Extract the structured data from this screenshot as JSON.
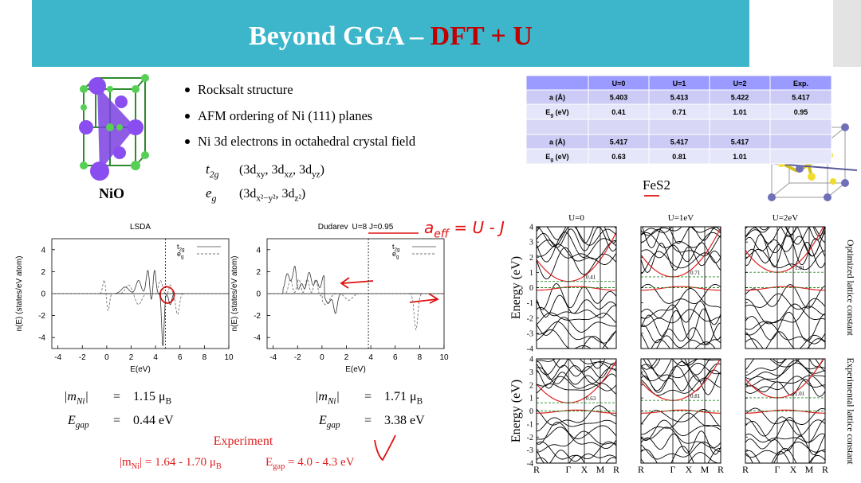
{
  "header": {
    "title_a": "Beyond GGA – ",
    "title_b": "DFT + U"
  },
  "structure": {
    "label": "NiO"
  },
  "bullets": [
    "Rocksalt structure",
    "AFM ordering of Ni (111) planes",
    "Ni 3d electrons in octahedral crystal field"
  ],
  "orbitals": [
    {
      "symbol": [
        "t",
        "2g"
      ],
      "set": [
        "(3d",
        "xy",
        ", 3d",
        "xz",
        ", 3d",
        "yz",
        ")"
      ]
    },
    {
      "symbol": [
        "e",
        "g"
      ],
      "set": [
        "(3d",
        "x²−y²",
        ", 3d",
        "z²",
        ")"
      ]
    }
  ],
  "table": {
    "header": [
      "U=0",
      "U=1",
      "U=2",
      "Exp."
    ],
    "rows": [
      {
        "label": [
          "a (Å)"
        ],
        "cells": [
          5.403,
          5.413,
          5.422,
          5.417
        ]
      },
      {
        "label": [
          "E",
          "g",
          " (eV)"
        ],
        "cells": [
          0.41,
          0.71,
          1.01,
          0.95
        ]
      },
      {
        "label": [
          "a (Å)"
        ],
        "cells": [
          5.417,
          5.417,
          5.417
        ]
      },
      {
        "label": [
          "E",
          "g",
          " (eV)"
        ],
        "cells": [
          0.63,
          0.81,
          1.01
        ]
      }
    ]
  },
  "compound": {
    "label": "FeS2"
  },
  "dos_axes": {
    "ylabel": "n(E) (states/eV atom)",
    "xlabel": "E(eV)",
    "xlim": [
      -4.5,
      10
    ],
    "ylim": [
      -5,
      5
    ],
    "xticks": [
      -4,
      -2,
      0,
      2,
      4,
      6,
      8,
      10
    ],
    "yticks": [
      -4,
      -2,
      0,
      2,
      4
    ],
    "legend": [
      [
        "t",
        "2g"
      ],
      [
        "e",
        "g"
      ]
    ]
  },
  "dos_panels": [
    {
      "title": "LSDA"
    },
    {
      "title": "Dudarev",
      "params": "U=8 J=0.95"
    }
  ],
  "dos_results": [
    {
      "m_label": [
        "|m",
        "Ni",
        "|"
      ],
      "m_eq": "=",
      "m_value": [
        "1.15 μ",
        "B"
      ],
      "gap_label": [
        "E",
        "gap"
      ],
      "gap_eq": "=",
      "gap_value": "0.44 eV"
    },
    {
      "m_label": [
        "|m",
        "Ni",
        "|"
      ],
      "m_eq": "=",
      "m_value": [
        "1.71 μ",
        "B"
      ],
      "gap_label": [
        "E",
        "gap"
      ],
      "gap_eq": "=",
      "gap_value": "3.38 eV"
    }
  ],
  "experiment": {
    "title": "Experiment",
    "m": [
      "|m",
      "Ni",
      "| = 1.64 - 1.70 μ",
      "B"
    ],
    "gap": [
      "E",
      "gap",
      " = 4.0 - 4.3 eV"
    ]
  },
  "annotations": {
    "handwritten": [
      "a",
      "eff",
      " = U - J"
    ]
  },
  "bands": {
    "columns": [
      "U=0",
      "U=1eV",
      "U=2eV"
    ],
    "rows": [
      "Optimized lattice constant",
      "Experimental lattice constant"
    ],
    "ylabel": "Energy (eV)",
    "ylim": [
      -4,
      4
    ],
    "yticks": [
      -4,
      -3,
      -2,
      -1,
      0,
      1,
      2,
      3,
      4
    ],
    "kpoints": [
      "R",
      "Γ",
      "X",
      "M",
      "R"
    ],
    "gaps": [
      [
        0.41,
        0.71,
        1.01
      ],
      [
        0.63,
        0.81,
        1.01
      ]
    ]
  }
}
